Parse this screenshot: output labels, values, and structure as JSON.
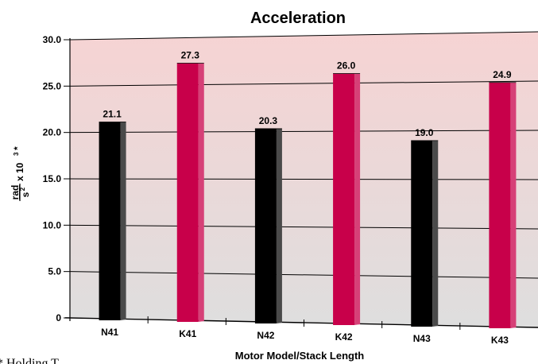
{
  "chart_data": {
    "type": "bar",
    "title": "Acceleration",
    "xlabel": "Motor Model/Stack Length",
    "ylabel": {
      "numerator": "rad",
      "denominator": "s",
      "denominator_exponent": "2",
      "multiplier": "x 10",
      "multiplier_exponent": "3",
      "suffix": "*"
    },
    "categories": [
      "N41",
      "K41",
      "N42",
      "K42",
      "N43",
      "K43"
    ],
    "values": [
      21.1,
      27.3,
      20.3,
      26.0,
      19.0,
      24.9
    ],
    "value_labels": [
      "21.1",
      "27.3",
      "20.3",
      "26.0",
      "19.0",
      "24.9"
    ],
    "yticks": [
      "0",
      "5.0",
      "10.0",
      "15.0",
      "20.0",
      "25.0",
      "30.0"
    ],
    "ylim": [
      0,
      30
    ],
    "grid": true,
    "bar_colors": [
      "#000000",
      "#c8004a",
      "#000000",
      "#c8004a",
      "#000000",
      "#c8004a"
    ],
    "footnote": "* Holding T"
  }
}
